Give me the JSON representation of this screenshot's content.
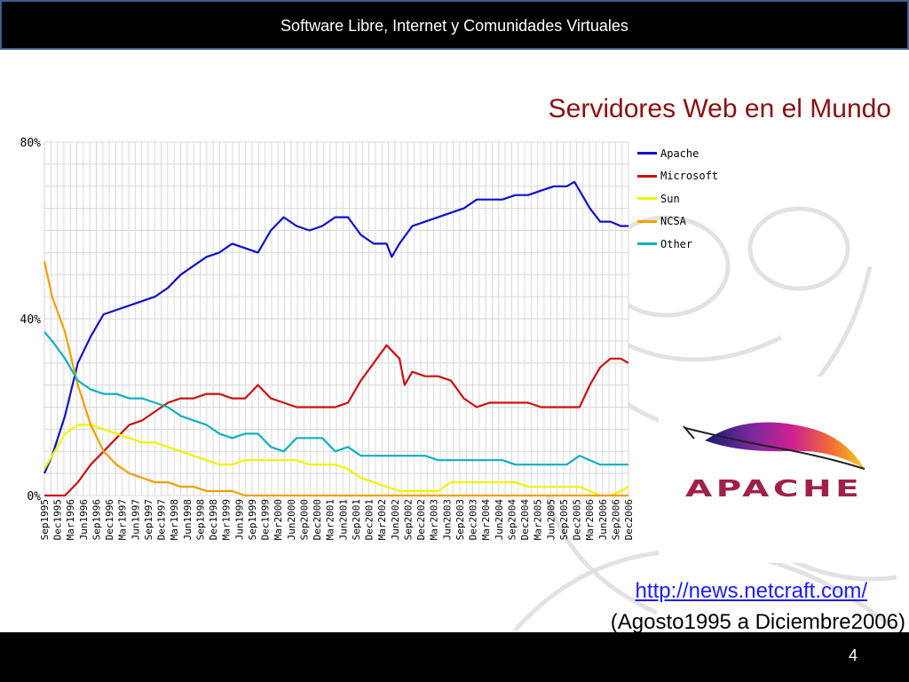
{
  "header": {
    "title": "Software Libre, Internet y Comunidades Virtuales"
  },
  "slide": {
    "title": "Servidores Web en el Mundo",
    "source_url": "http://news.netcraft.com/",
    "source_range": "(Agosto1995 a Diciembre2006)",
    "page_number": "4"
  },
  "logo": {
    "text": "APACHE",
    "icon": "apache-feather-icon"
  },
  "chart_data": {
    "type": "line",
    "title": "",
    "xlabel": "",
    "ylabel": "",
    "ylim": [
      0,
      80
    ],
    "yticks": [
      "0%",
      "40%",
      "80%"
    ],
    "grid": true,
    "legend_position": "right",
    "x_tick_labels": [
      "Sep1995",
      "Dec1995",
      "Mar1996",
      "Jun1996",
      "Sep1996",
      "Dec1996",
      "Mar1997",
      "Jun1997",
      "Sep1997",
      "Dec1997",
      "Mar1998",
      "Jun1998",
      "Sep1998",
      "Dec1998",
      "Mar1999",
      "Jun1999",
      "Sep1999",
      "Dec1999",
      "Mar2000",
      "Jun2000",
      "Sep2000",
      "Dec2000",
      "Mar2001",
      "Jun2001",
      "Sep2001",
      "Dec2001",
      "Mar2002",
      "Jun2002",
      "Sep2002",
      "Dec2002",
      "Mar2003",
      "Jun2003",
      "Sep2003",
      "Dec2003",
      "Mar2004",
      "Jun2004",
      "Sep2004",
      "Dec2004",
      "Mar2005",
      "Jun2005",
      "Sep2005",
      "Dec2005",
      "Mar2006",
      "Jun2006",
      "Sep2006",
      "Dec2006"
    ],
    "series": [
      {
        "name": "Apache",
        "color": "#1010cc",
        "values": [
          [
            1995.6,
            5
          ],
          [
            1995.75,
            9
          ],
          [
            1996.0,
            18
          ],
          [
            1996.25,
            30
          ],
          [
            1996.5,
            36
          ],
          [
            1996.75,
            41
          ],
          [
            1997.0,
            42
          ],
          [
            1997.25,
            43
          ],
          [
            1997.5,
            44
          ],
          [
            1997.75,
            45
          ],
          [
            1998.0,
            47
          ],
          [
            1998.25,
            50
          ],
          [
            1998.5,
            52
          ],
          [
            1998.75,
            54
          ],
          [
            1999.0,
            55
          ],
          [
            1999.25,
            57
          ],
          [
            1999.5,
            56
          ],
          [
            1999.75,
            55
          ],
          [
            2000.0,
            60
          ],
          [
            2000.25,
            63
          ],
          [
            2000.5,
            61
          ],
          [
            2000.75,
            60
          ],
          [
            2001.0,
            61
          ],
          [
            2001.25,
            63
          ],
          [
            2001.5,
            63
          ],
          [
            2001.75,
            59
          ],
          [
            2002.0,
            57
          ],
          [
            2002.25,
            57
          ],
          [
            2002.35,
            54
          ],
          [
            2002.5,
            57
          ],
          [
            2002.75,
            61
          ],
          [
            2003.0,
            62
          ],
          [
            2003.25,
            63
          ],
          [
            2003.5,
            64
          ],
          [
            2003.75,
            65
          ],
          [
            2004.0,
            67
          ],
          [
            2004.25,
            67
          ],
          [
            2004.5,
            67
          ],
          [
            2004.75,
            68
          ],
          [
            2005.0,
            68
          ],
          [
            2005.25,
            69
          ],
          [
            2005.5,
            70
          ],
          [
            2005.75,
            70
          ],
          [
            2005.9,
            71
          ],
          [
            2006.0,
            69
          ],
          [
            2006.2,
            65
          ],
          [
            2006.4,
            62
          ],
          [
            2006.6,
            62
          ],
          [
            2006.8,
            61
          ],
          [
            2006.95,
            61
          ]
        ]
      },
      {
        "name": "Microsoft",
        "color": "#cc1010",
        "values": [
          [
            1995.6,
            0
          ],
          [
            1995.75,
            0
          ],
          [
            1996.0,
            0
          ],
          [
            1996.25,
            3
          ],
          [
            1996.5,
            7
          ],
          [
            1996.75,
            10
          ],
          [
            1997.0,
            13
          ],
          [
            1997.25,
            16
          ],
          [
            1997.5,
            17
          ],
          [
            1997.75,
            19
          ],
          [
            1998.0,
            21
          ],
          [
            1998.25,
            22
          ],
          [
            1998.5,
            22
          ],
          [
            1998.75,
            23
          ],
          [
            1999.0,
            23
          ],
          [
            1999.25,
            22
          ],
          [
            1999.5,
            22
          ],
          [
            1999.75,
            25
          ],
          [
            2000.0,
            22
          ],
          [
            2000.25,
            21
          ],
          [
            2000.5,
            20
          ],
          [
            2000.75,
            20
          ],
          [
            2001.0,
            20
          ],
          [
            2001.25,
            20
          ],
          [
            2001.5,
            21
          ],
          [
            2001.75,
            26
          ],
          [
            2002.0,
            30
          ],
          [
            2002.25,
            34
          ],
          [
            2002.5,
            31
          ],
          [
            2002.6,
            25
          ],
          [
            2002.75,
            28
          ],
          [
            2003.0,
            27
          ],
          [
            2003.25,
            27
          ],
          [
            2003.5,
            26
          ],
          [
            2003.75,
            22
          ],
          [
            2004.0,
            20
          ],
          [
            2004.25,
            21
          ],
          [
            2004.5,
            21
          ],
          [
            2004.75,
            21
          ],
          [
            2005.0,
            21
          ],
          [
            2005.25,
            20
          ],
          [
            2005.5,
            20
          ],
          [
            2005.75,
            20
          ],
          [
            2006.0,
            20
          ],
          [
            2006.2,
            25
          ],
          [
            2006.4,
            29
          ],
          [
            2006.6,
            31
          ],
          [
            2006.8,
            31
          ],
          [
            2006.95,
            30
          ]
        ]
      },
      {
        "name": "Sun",
        "color": "#f2f200",
        "values": [
          [
            1995.6,
            6
          ],
          [
            1995.75,
            9
          ],
          [
            1996.0,
            14
          ],
          [
            1996.25,
            16
          ],
          [
            1996.5,
            16
          ],
          [
            1996.75,
            15
          ],
          [
            1997.0,
            14
          ],
          [
            1997.25,
            13
          ],
          [
            1997.5,
            12
          ],
          [
            1997.75,
            12
          ],
          [
            1998.0,
            11
          ],
          [
            1998.25,
            10
          ],
          [
            1998.5,
            9
          ],
          [
            1998.75,
            8
          ],
          [
            1999.0,
            7
          ],
          [
            1999.25,
            7
          ],
          [
            1999.5,
            8
          ],
          [
            1999.75,
            8
          ],
          [
            2000.0,
            8
          ],
          [
            2000.25,
            8
          ],
          [
            2000.5,
            8
          ],
          [
            2000.75,
            7
          ],
          [
            2001.0,
            7
          ],
          [
            2001.25,
            7
          ],
          [
            2001.5,
            6
          ],
          [
            2001.75,
            4
          ],
          [
            2002.0,
            3
          ],
          [
            2002.25,
            2
          ],
          [
            2002.5,
            1
          ],
          [
            2002.75,
            1
          ],
          [
            2003.0,
            1
          ],
          [
            2003.25,
            1
          ],
          [
            2003.5,
            3
          ],
          [
            2003.75,
            3
          ],
          [
            2004.0,
            3
          ],
          [
            2004.25,
            3
          ],
          [
            2004.5,
            3
          ],
          [
            2004.75,
            3
          ],
          [
            2005.0,
            2
          ],
          [
            2005.25,
            2
          ],
          [
            2005.5,
            2
          ],
          [
            2005.75,
            2
          ],
          [
            2006.0,
            2
          ],
          [
            2006.2,
            1
          ],
          [
            2006.4,
            0
          ],
          [
            2006.6,
            0
          ],
          [
            2006.8,
            1
          ],
          [
            2006.95,
            2
          ]
        ]
      },
      {
        "name": "NCSA",
        "color": "#f0a000",
        "values": [
          [
            1995.6,
            53
          ],
          [
            1995.75,
            45
          ],
          [
            1996.0,
            37
          ],
          [
            1996.25,
            25
          ],
          [
            1996.5,
            16
          ],
          [
            1996.75,
            10
          ],
          [
            1997.0,
            7
          ],
          [
            1997.25,
            5
          ],
          [
            1997.5,
            4
          ],
          [
            1997.75,
            3
          ],
          [
            1998.0,
            3
          ],
          [
            1998.25,
            2
          ],
          [
            1998.5,
            2
          ],
          [
            1998.75,
            1
          ],
          [
            1999.0,
            1
          ],
          [
            1999.25,
            1
          ],
          [
            1999.5,
            0
          ],
          [
            1999.75,
            0
          ],
          [
            2000.0,
            0
          ],
          [
            2001.0,
            0
          ],
          [
            2002.0,
            0
          ],
          [
            2003.0,
            0
          ],
          [
            2004.0,
            0
          ],
          [
            2005.0,
            0
          ],
          [
            2006.0,
            0
          ],
          [
            2006.95,
            0
          ]
        ]
      },
      {
        "name": "Other",
        "color": "#10b0c0",
        "values": [
          [
            1995.6,
            37
          ],
          [
            1995.75,
            35
          ],
          [
            1996.0,
            31
          ],
          [
            1996.25,
            26
          ],
          [
            1996.5,
            24
          ],
          [
            1996.75,
            23
          ],
          [
            1997.0,
            23
          ],
          [
            1997.25,
            22
          ],
          [
            1997.5,
            22
          ],
          [
            1997.75,
            21
          ],
          [
            1998.0,
            20
          ],
          [
            1998.25,
            18
          ],
          [
            1998.5,
            17
          ],
          [
            1998.75,
            16
          ],
          [
            1999.0,
            14
          ],
          [
            1999.25,
            13
          ],
          [
            1999.5,
            14
          ],
          [
            1999.75,
            14
          ],
          [
            2000.0,
            11
          ],
          [
            2000.25,
            10
          ],
          [
            2000.5,
            13
          ],
          [
            2000.75,
            13
          ],
          [
            2001.0,
            13
          ],
          [
            2001.25,
            10
          ],
          [
            2001.5,
            11
          ],
          [
            2001.75,
            9
          ],
          [
            2002.0,
            9
          ],
          [
            2002.25,
            9
          ],
          [
            2002.5,
            9
          ],
          [
            2002.75,
            9
          ],
          [
            2003.0,
            9
          ],
          [
            2003.25,
            8
          ],
          [
            2003.5,
            8
          ],
          [
            2003.75,
            8
          ],
          [
            2004.0,
            8
          ],
          [
            2004.25,
            8
          ],
          [
            2004.5,
            8
          ],
          [
            2004.75,
            7
          ],
          [
            2005.0,
            7
          ],
          [
            2005.25,
            7
          ],
          [
            2005.5,
            7
          ],
          [
            2005.75,
            7
          ],
          [
            2006.0,
            9
          ],
          [
            2006.2,
            8
          ],
          [
            2006.4,
            7
          ],
          [
            2006.6,
            7
          ],
          [
            2006.8,
            7
          ],
          [
            2006.95,
            7
          ]
        ]
      }
    ]
  }
}
